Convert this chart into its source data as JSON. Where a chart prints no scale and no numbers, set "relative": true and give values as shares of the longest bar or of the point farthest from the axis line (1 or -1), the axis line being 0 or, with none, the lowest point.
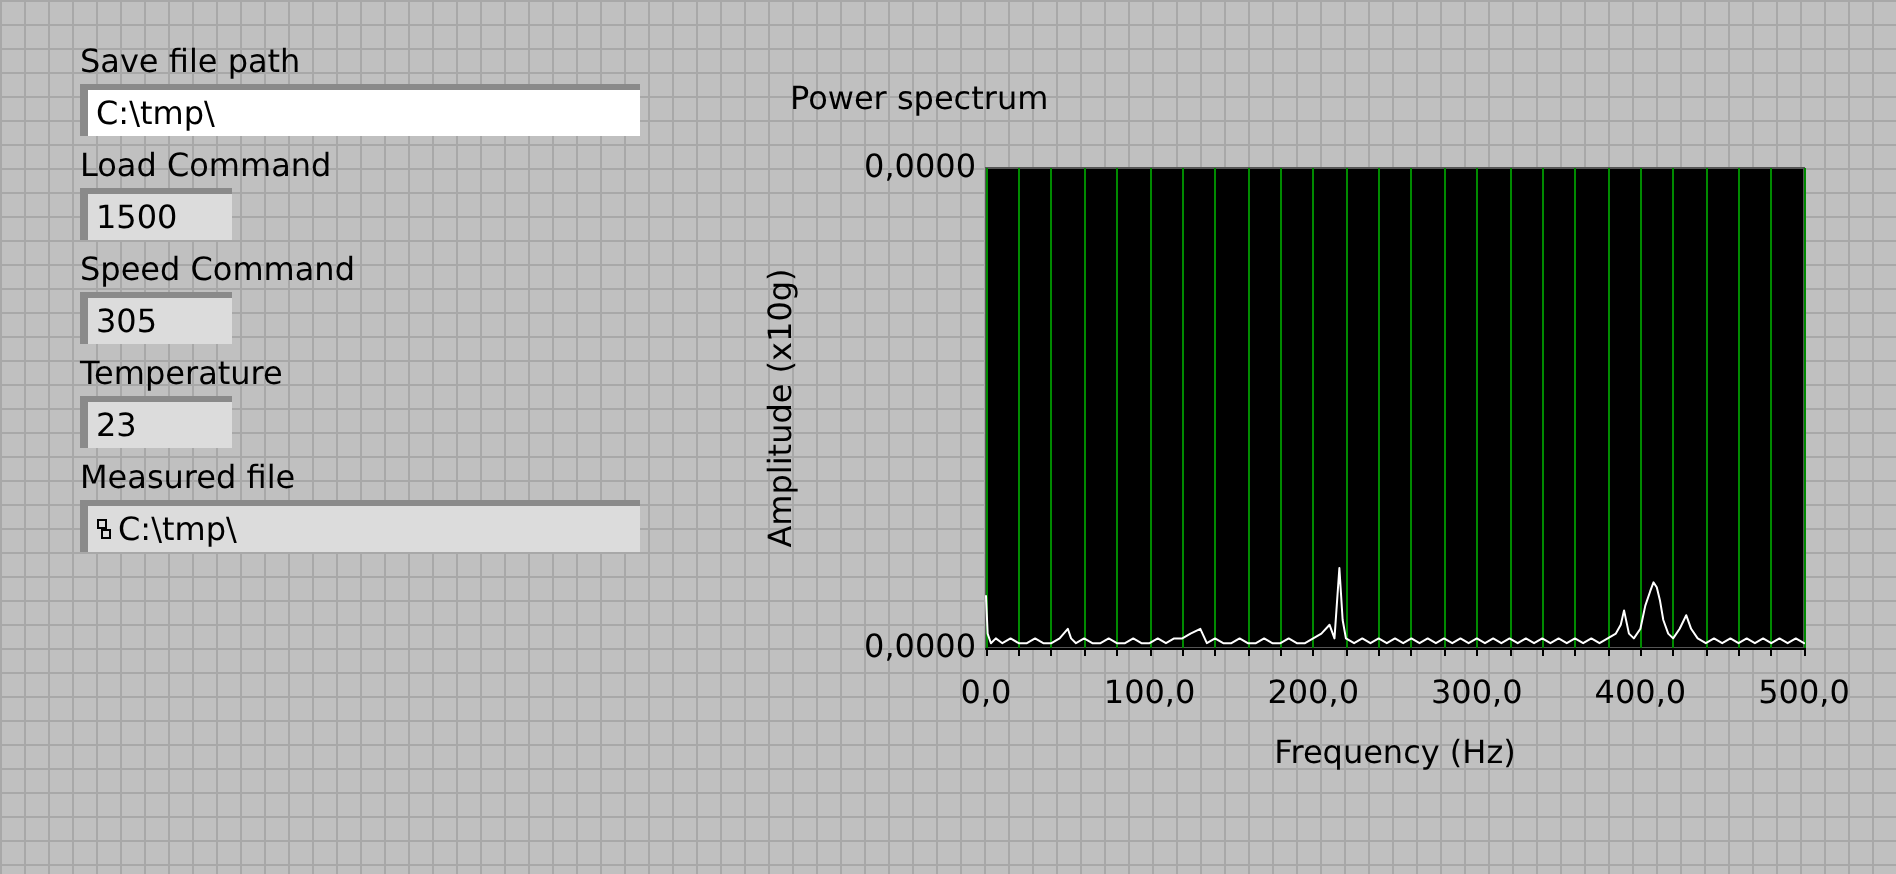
{
  "chart_data": [
    {
      "type": "other",
      "annotations": [
        "Save file path",
        "C:\\tmp\\",
        "Load Command",
        "1500",
        "Speed Command",
        "305",
        "Temperature",
        "23",
        "Measured file",
        "C:\\tmp\\"
      ]
    },
    {
      "type": "line",
      "title": "Power spectrum",
      "xlabel": "Frequency (Hz)",
      "ylabel": "Amplitude (x10g)",
      "grid": "x",
      "marker": "none",
      "line_style": "solid",
      "xlim": [
        0,
        500
      ],
      "xticks": [
        {
          "value": 0,
          "label": "0,0"
        },
        {
          "value": 20,
          "label": null
        },
        {
          "value": 40,
          "label": null
        },
        {
          "value": 60,
          "label": null
        },
        {
          "value": 80,
          "label": null
        },
        {
          "value": 100,
          "label": "100,0"
        },
        {
          "value": 120,
          "label": null
        },
        {
          "value": 140,
          "label": null
        },
        {
          "value": 160,
          "label": null
        },
        {
          "value": 180,
          "label": null
        },
        {
          "value": 200,
          "label": "200,0"
        },
        {
          "value": 220,
          "label": null
        },
        {
          "value": 240,
          "label": null
        },
        {
          "value": 260,
          "label": null
        },
        {
          "value": 280,
          "label": null
        },
        {
          "value": 300,
          "label": "300,0"
        },
        {
          "value": 320,
          "label": null
        },
        {
          "value": 340,
          "label": null
        },
        {
          "value": 360,
          "label": null
        },
        {
          "value": 380,
          "label": null
        },
        {
          "value": 400,
          "label": "400,0"
        },
        {
          "value": 420,
          "label": null
        },
        {
          "value": 440,
          "label": null
        },
        {
          "value": 460,
          "label": null
        },
        {
          "value": 480,
          "label": null
        },
        {
          "value": 500,
          "label": "500,0"
        }
      ],
      "relative": true,
      "annotations": [
        "0,0000",
        "0,0000"
      ],
      "series": [
        {
          "color": "#ffffff",
          "x": [
            0,
            1,
            3,
            6,
            10,
            15,
            20,
            25,
            30,
            35,
            40,
            45,
            50,
            52,
            55,
            60,
            65,
            70,
            75,
            80,
            85,
            90,
            95,
            100,
            105,
            110,
            115,
            120,
            125,
            131,
            135,
            140,
            145,
            150,
            155,
            160,
            165,
            170,
            175,
            180,
            185,
            190,
            195,
            200,
            205,
            210,
            213,
            216,
            218,
            220,
            225,
            230,
            235,
            240,
            245,
            250,
            255,
            260,
            265,
            270,
            275,
            280,
            285,
            290,
            295,
            300,
            305,
            310,
            315,
            320,
            325,
            330,
            335,
            340,
            345,
            350,
            355,
            360,
            365,
            370,
            375,
            380,
            385,
            388,
            390,
            393,
            396,
            400,
            403,
            406,
            408,
            410,
            412,
            414,
            417,
            420,
            424,
            428,
            431,
            435,
            440,
            445,
            450,
            455,
            460,
            465,
            470,
            475,
            480,
            485,
            490,
            495,
            500
          ],
          "values": [
            0.65,
            0.18,
            0.06,
            0.12,
            0.06,
            0.12,
            0.06,
            0.06,
            0.12,
            0.06,
            0.06,
            0.12,
            0.24,
            0.12,
            0.06,
            0.12,
            0.06,
            0.06,
            0.12,
            0.06,
            0.06,
            0.12,
            0.06,
            0.06,
            0.12,
            0.06,
            0.12,
            0.12,
            0.18,
            0.24,
            0.06,
            0.12,
            0.06,
            0.06,
            0.12,
            0.06,
            0.06,
            0.12,
            0.06,
            0.06,
            0.12,
            0.06,
            0.06,
            0.12,
            0.18,
            0.29,
            0.12,
            1,
            0.35,
            0.12,
            0.06,
            0.12,
            0.06,
            0.12,
            0.06,
            0.12,
            0.06,
            0.12,
            0.06,
            0.12,
            0.06,
            0.12,
            0.06,
            0.12,
            0.06,
            0.12,
            0.06,
            0.12,
            0.06,
            0.12,
            0.06,
            0.12,
            0.06,
            0.12,
            0.06,
            0.12,
            0.06,
            0.12,
            0.06,
            0.12,
            0.06,
            0.12,
            0.18,
            0.29,
            0.47,
            0.18,
            0.12,
            0.24,
            0.53,
            0.71,
            0.82,
            0.76,
            0.59,
            0.35,
            0.18,
            0.12,
            0.24,
            0.41,
            0.24,
            0.12,
            0.06,
            0.12,
            0.06,
            0.12,
            0.06,
            0.12,
            0.06,
            0.12,
            0.06,
            0.12,
            0.06,
            0.12,
            0.06
          ]
        }
      ]
    }
  ]
}
